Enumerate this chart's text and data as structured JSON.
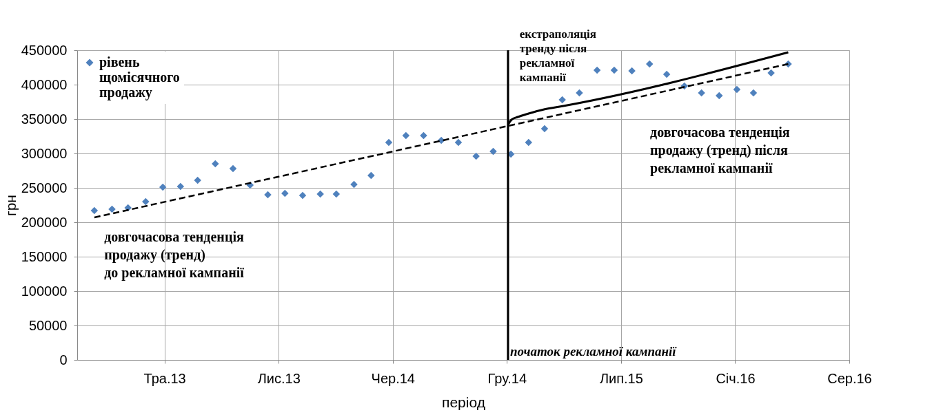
{
  "chart_data": {
    "type": "scatter",
    "xlabel": "період",
    "ylabel": "грн",
    "xlim": [
      "2012-12-02",
      "2016-08-16"
    ],
    "xticks": [
      {
        "value": "2013-05-04",
        "label": "Тра.13"
      },
      {
        "value": "2013-11-20",
        "label": "Лис.13"
      },
      {
        "value": "2014-06-08",
        "label": "Чер.14"
      },
      {
        "value": "2014-12-25",
        "label": "Гру.14"
      },
      {
        "value": "2015-07-13",
        "label": "Лип.15"
      },
      {
        "value": "2016-01-29",
        "label": "Січ.16"
      },
      {
        "value": "2016-08-16",
        "label": "Сер.16"
      }
    ],
    "ylim": [
      0,
      450000
    ],
    "yticks": [
      0,
      50000,
      100000,
      150000,
      200000,
      250000,
      300000,
      350000,
      400000,
      450000
    ],
    "grid": true,
    "legend": "top left",
    "x": [
      "2013-01",
      "2013-02",
      "2013-03",
      "2013-04",
      "2013-05",
      "2013-06",
      "2013-07",
      "2013-08",
      "2013-09",
      "2013-10",
      "2013-11",
      "2013-12",
      "2014-01",
      "2014-02",
      "2014-03",
      "2014-04",
      "2014-05",
      "2014-06",
      "2014-07",
      "2014-08",
      "2014-09",
      "2014-10",
      "2014-11",
      "2014-12",
      "2015-01",
      "2015-02",
      "2015-03",
      "2015-04",
      "2015-05",
      "2015-06",
      "2015-07",
      "2015-08",
      "2015-09",
      "2015-10",
      "2015-11",
      "2015-12",
      "2016-01",
      "2016-02",
      "2016-03",
      "2016-04",
      "2016-05"
    ],
    "series": [
      {
        "name": "рівень щомісячного продажу",
        "color": "#4f81bd",
        "marker": "diamond",
        "values": [
          217000,
          219000,
          221000,
          230000,
          251000,
          252000,
          261000,
          285000,
          278000,
          254000,
          240000,
          242000,
          239000,
          241000,
          241000,
          255000,
          268000,
          316000,
          326000,
          326000,
          319000,
          316000,
          296000,
          303000,
          299000,
          316000,
          336000,
          378000,
          388000,
          421000,
          421000,
          420000,
          430000,
          415000,
          398000,
          388000,
          384000,
          393000,
          388000,
          417000,
          430000
        ]
      },
      {
        "type": "line",
        "color": "#000000",
        "line_style": "dashed",
        "x": [
          "2013-01-01",
          "2016-05-01"
        ],
        "values": [
          207000,
          430000
        ]
      },
      {
        "type": "line",
        "color": "#000000",
        "line_style": "solid",
        "x": [
          "2014-12-27",
          "2015-01-02",
          "2015-01-13",
          "2015-02-01",
          "2015-02-28",
          "2015-04-03",
          "2016-05-01"
        ],
        "values": [
          342000,
          349000,
          353000,
          358000,
          364000,
          369000,
          447000
        ]
      }
    ],
    "ref_lines": [
      {
        "axis": "x",
        "value": "2014-12-27",
        "label": "початок рекламної кампанії",
        "color": "#000000"
      }
    ],
    "annotations": [
      "екстраполяція\nтренду після\nрекламної\nкампанії",
      "довгочасова тенденція\nпродажу (тренд) після\nрекламної кампанії",
      "довгочасова тенденція\nпродажу (тренд)\nдо рекламної кампанії"
    ]
  }
}
